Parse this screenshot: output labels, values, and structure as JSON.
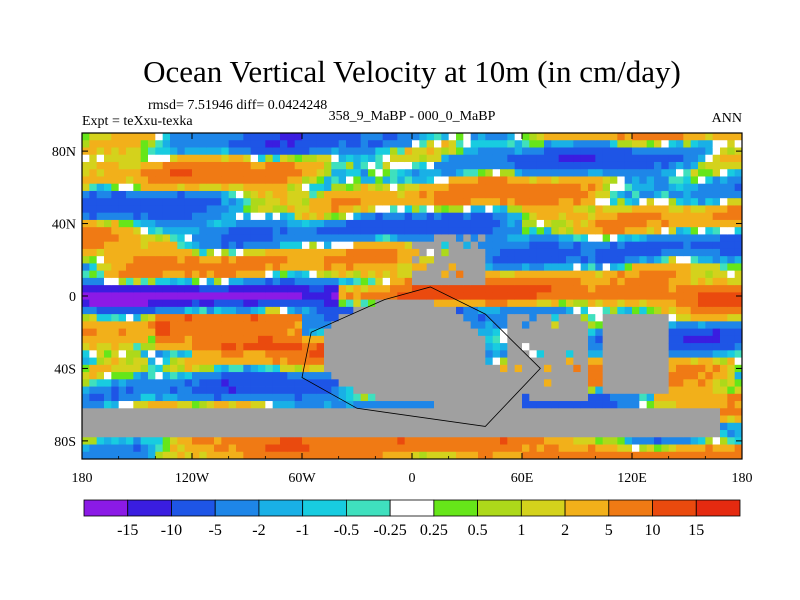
{
  "chart_data": {
    "type": "heatmap",
    "title": "Ocean Vertical Velocity at 10m (in cm/day)",
    "stats_text": "rmsd= 7.51946 diff= 0.0424248",
    "experiment_text": "Expt = teXxu-texka",
    "comparison_text": "358_9_MaBP - 000_0_MaBP",
    "season_text": "ANN",
    "x_ticks": [
      "180",
      "120W",
      "60W",
      "0",
      "60E",
      "120E",
      "180"
    ],
    "x_tick_values": [
      -180,
      -120,
      -60,
      0,
      60,
      120,
      180
    ],
    "y_ticks": [
      "80N",
      "40N",
      "0",
      "40S",
      "80S"
    ],
    "y_tick_values": [
      80,
      40,
      0,
      -40,
      -80
    ],
    "xlim": [
      -180,
      180
    ],
    "ylim": [
      -90,
      90
    ],
    "colorbar": {
      "labels": [
        "-15",
        "-10",
        "-5",
        "-2",
        "-1",
        "-0.5",
        "-0.25",
        "0.25",
        "0.5",
        "1",
        "2",
        "5",
        "10",
        "15"
      ],
      "colors": [
        "#8B1AE6",
        "#3A1DE0",
        "#1E55E6",
        "#1E86E8",
        "#19B0E6",
        "#18CCE0",
        "#3FE0BE",
        "#FFFFFF",
        "#66E619",
        "#ADD91A",
        "#D4D21C",
        "#F2B01A",
        "#F07A14",
        "#EA4A0E",
        "#E52A10"
      ]
    },
    "land_color": "#A0A0A0"
  }
}
